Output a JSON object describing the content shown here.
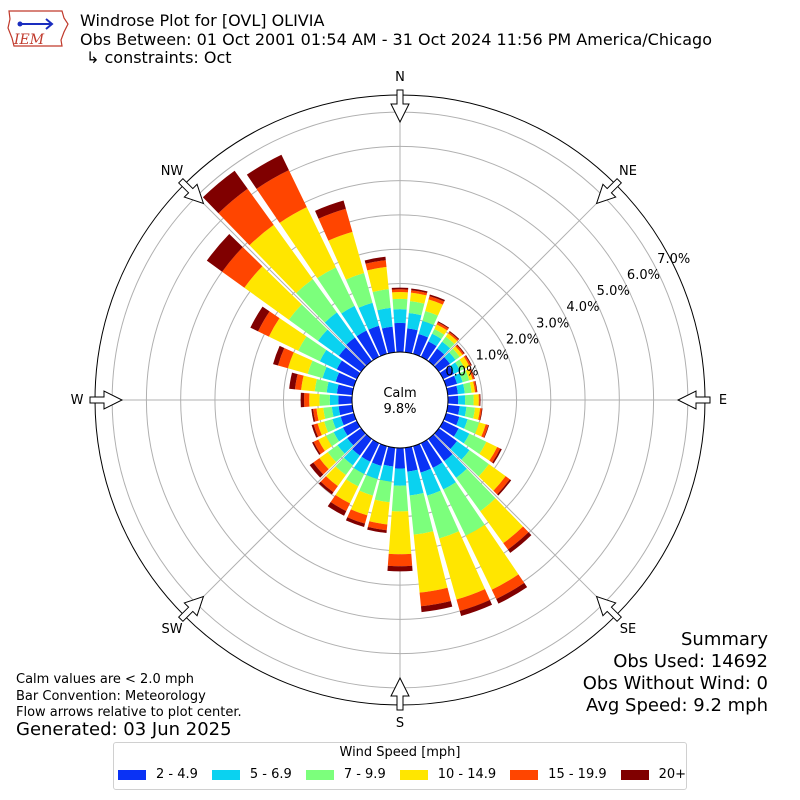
{
  "header": {
    "title": "Windrose Plot for [OVL] OLIVIA",
    "obs_between": "Obs Between: 01 Oct 2001 01:54 AM - 31 Oct 2024 11:56 PM America/Chicago",
    "constraints": "↳ constraints: Oct",
    "logo_text": "IEM"
  },
  "notes": {
    "calm_note": "Calm values are < 2.0 mph",
    "bar_convention": "Bar Convention: Meteorology",
    "flow_arrows": "Flow arrows relative to plot center.",
    "generated": "Generated: 03 Jun 2025"
  },
  "summary": {
    "title": "Summary",
    "obs_used": "Obs Used: 14692",
    "obs_without_wind": "Obs Without Wind: 0",
    "avg_speed": "Avg Speed: 9.2 mph"
  },
  "center": {
    "label": "Calm",
    "value": "9.8%"
  },
  "compass": [
    "N",
    "NE",
    "E",
    "SE",
    "S",
    "SW",
    "W",
    "NW"
  ],
  "colors": [
    "#0a32f5",
    "#0ad2f0",
    "#7cff7c",
    "#ffe600",
    "#ff4500",
    "#800000"
  ],
  "chart_data": {
    "type": "windrose",
    "legend_title": "Wind Speed [mph]",
    "speed_bins": [
      "2 - 4.9",
      "5 - 6.9",
      "7 - 9.9",
      "10 - 14.9",
      "15 - 19.9",
      "20+"
    ],
    "directions_deg": [
      0,
      10,
      20,
      30,
      40,
      50,
      60,
      70,
      80,
      90,
      100,
      110,
      120,
      130,
      140,
      150,
      160,
      170,
      180,
      190,
      200,
      210,
      220,
      230,
      240,
      250,
      260,
      270,
      280,
      290,
      300,
      310,
      320,
      330,
      340,
      350
    ],
    "cumulative_percent": [
      [
        0.85,
        1.25,
        1.55,
        1.75,
        1.83,
        1.88
      ],
      [
        0.7,
        1.15,
        1.5,
        1.75,
        1.82,
        1.87
      ],
      [
        0.6,
        1.0,
        1.3,
        1.65,
        1.75,
        1.8
      ],
      [
        0.5,
        0.75,
        0.9,
        1.05,
        1.12,
        1.15
      ],
      [
        0.45,
        0.7,
        0.88,
        1.0,
        1.05,
        1.08
      ],
      [
        0.4,
        0.6,
        0.75,
        0.85,
        0.9,
        0.93
      ],
      [
        0.35,
        0.55,
        0.7,
        0.85,
        0.9,
        0.93
      ],
      [
        0.33,
        0.5,
        0.7,
        0.8,
        0.85,
        0.87
      ],
      [
        0.3,
        0.5,
        0.7,
        0.8,
        0.85,
        0.87
      ],
      [
        0.3,
        0.5,
        0.75,
        0.9,
        0.93,
        0.95
      ],
      [
        0.35,
        0.55,
        0.8,
        0.95,
        1.0,
        1.02
      ],
      [
        0.4,
        0.65,
        1.0,
        1.2,
        1.28,
        1.3
      ],
      [
        0.5,
        0.85,
        1.4,
        1.75,
        1.85,
        1.9
      ],
      [
        0.65,
        1.1,
        1.8,
        2.4,
        2.55,
        2.6
      ],
      [
        0.8,
        1.4,
        2.6,
        3.75,
        3.98,
        4.1
      ],
      [
        0.8,
        1.5,
        3.0,
        4.75,
        5.05,
        5.2
      ],
      [
        0.8,
        1.5,
        2.8,
        4.65,
        5.0,
        5.15
      ],
      [
        0.7,
        1.4,
        2.55,
        4.25,
        4.65,
        4.82
      ],
      [
        0.6,
        1.1,
        1.85,
        3.1,
        3.45,
        3.6
      ],
      [
        0.55,
        1.0,
        1.6,
        2.25,
        2.42,
        2.5
      ],
      [
        0.6,
        1.0,
        1.5,
        2.1,
        2.35,
        2.45
      ],
      [
        0.6,
        1.0,
        1.4,
        1.95,
        2.2,
        2.35
      ],
      [
        0.6,
        0.95,
        1.3,
        1.7,
        1.92,
        2.0
      ],
      [
        0.5,
        0.85,
        1.2,
        1.5,
        1.72,
        1.85
      ],
      [
        0.45,
        0.75,
        1.0,
        1.25,
        1.4,
        1.45
      ],
      [
        0.4,
        0.65,
        0.9,
        1.1,
        1.22,
        1.28
      ],
      [
        0.4,
        0.6,
        0.85,
        1.05,
        1.15,
        1.2
      ],
      [
        0.4,
        0.65,
        0.95,
        1.25,
        1.4,
        1.5
      ],
      [
        0.45,
        0.75,
        1.1,
        1.5,
        1.68,
        1.85
      ],
      [
        0.55,
        0.95,
        1.4,
        2.0,
        2.3,
        2.45
      ],
      [
        0.65,
        1.2,
        1.9,
        2.85,
        3.2,
        3.45
      ],
      [
        0.8,
        1.55,
        2.6,
        4.2,
        5.0,
        5.55
      ],
      [
        0.85,
        1.75,
        2.95,
        4.9,
        6.2,
        6.85
      ],
      [
        0.85,
        1.65,
        2.9,
        4.85,
        6.05,
        6.55
      ],
      [
        0.85,
        1.55,
        2.45,
        3.7,
        4.4,
        4.65
      ],
      [
        0.75,
        1.3,
        1.85,
        2.5,
        2.7,
        2.8
      ]
    ],
    "radial_ticks": [
      0,
      1,
      2,
      3,
      4,
      5,
      6,
      7
    ],
    "radial_tick_labels": [
      "0.0%",
      "1.0%",
      "2.0%",
      "3.0%",
      "4.0%",
      "5.0%",
      "6.0%",
      "7.0%"
    ],
    "rmax": 7.5
  }
}
